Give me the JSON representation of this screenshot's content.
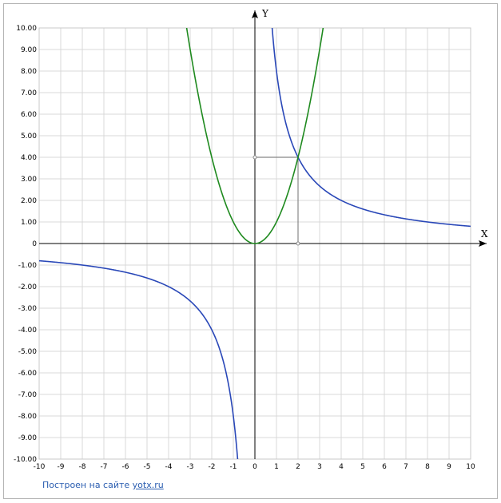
{
  "chart_data": {
    "type": "line",
    "title": "",
    "xlabel": "X",
    "ylabel": "Y",
    "xlim": [
      -10,
      10
    ],
    "ylim": [
      -10,
      10
    ],
    "grid": true,
    "x_ticks": [
      "-10",
      "-9",
      "-8",
      "-7",
      "-6",
      "-5",
      "-4",
      "-3",
      "-2",
      "-1",
      "0",
      "1",
      "2",
      "3",
      "4",
      "5",
      "6",
      "7",
      "8",
      "9",
      "10"
    ],
    "y_ticks": [
      "10.00",
      "9.00",
      "8.00",
      "7.00",
      "6.00",
      "5.00",
      "4.00",
      "3.00",
      "2.00",
      "1.00",
      "0",
      "-1.00",
      "-2.00",
      "-3.00",
      "-4.00",
      "-5.00",
      "-6.00",
      "-7.00",
      "-8.00",
      "-9.00",
      "-10.00"
    ],
    "series": [
      {
        "expr": "y = 8/x",
        "color": "#2a48b8",
        "points": [
          [
            -10,
            -0.8
          ],
          [
            -8,
            -1
          ],
          [
            -6,
            -1.33
          ],
          [
            -5,
            -1.6
          ],
          [
            -4,
            -2
          ],
          [
            -3,
            -2.67
          ],
          [
            -2.5,
            -3.2
          ],
          [
            -2,
            -4
          ],
          [
            -1.6,
            -5
          ],
          [
            -1.33,
            -6
          ],
          [
            -1,
            -8
          ],
          [
            -0.8,
            -10
          ],
          [
            0.8,
            10
          ],
          [
            1,
            8
          ],
          [
            1.33,
            6
          ],
          [
            1.6,
            5
          ],
          [
            2,
            4
          ],
          [
            2.5,
            3.2
          ],
          [
            3,
            2.67
          ],
          [
            4,
            2
          ],
          [
            5,
            1.6
          ],
          [
            6,
            1.33
          ],
          [
            8,
            1
          ],
          [
            10,
            0.8
          ]
        ]
      },
      {
        "expr": "y = x^2",
        "color": "#1f8a1f",
        "points": [
          [
            -3.16,
            10
          ],
          [
            -3,
            9
          ],
          [
            -2.5,
            6.25
          ],
          [
            -2,
            4
          ],
          [
            -1.5,
            2.25
          ],
          [
            -1,
            1
          ],
          [
            -0.5,
            0.25
          ],
          [
            0,
            0
          ],
          [
            0.5,
            0.25
          ],
          [
            1,
            1
          ],
          [
            1.5,
            2.25
          ],
          [
            2,
            4
          ],
          [
            2.5,
            6.25
          ],
          [
            3,
            9
          ],
          [
            3.16,
            10
          ]
        ]
      }
    ],
    "annotations": [
      {
        "type": "intersection-guides",
        "point": [
          2,
          4
        ],
        "color": "#888888"
      }
    ]
  },
  "footer": {
    "prefix": "Построен на сайте ",
    "link_text": "yotx.ru"
  }
}
